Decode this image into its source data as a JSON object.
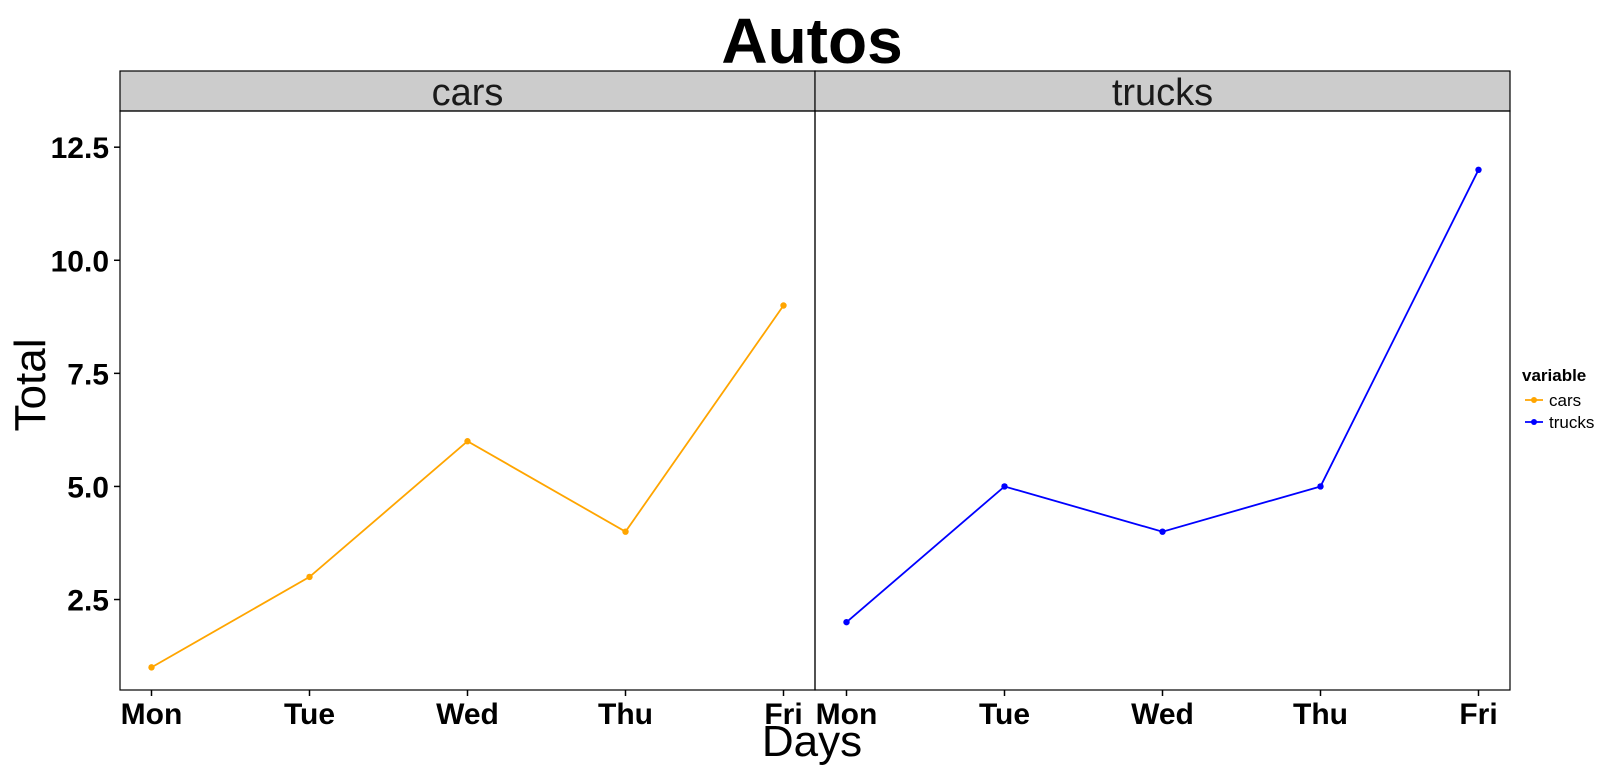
{
  "chart_data": {
    "type": "line",
    "title": "Autos",
    "xlabel": "Days",
    "ylabel": "Total",
    "categories": [
      "Mon",
      "Tue",
      "Wed",
      "Thu",
      "Fri"
    ],
    "ylim": [
      0.5,
      13.3
    ],
    "yticks": [
      "2.5",
      "5.0",
      "7.5",
      "10.0",
      "12.5"
    ],
    "grid": false,
    "legend": {
      "title": "variable",
      "placement": "right"
    },
    "series": [
      {
        "name": "cars",
        "panel": "cars",
        "color": "#FFA500",
        "values": [
          1,
          3,
          6,
          4,
          9
        ]
      },
      {
        "name": "trucks",
        "panel": "trucks",
        "color": "#0000FF",
        "values": [
          2,
          5,
          4,
          5,
          12
        ]
      }
    ]
  }
}
